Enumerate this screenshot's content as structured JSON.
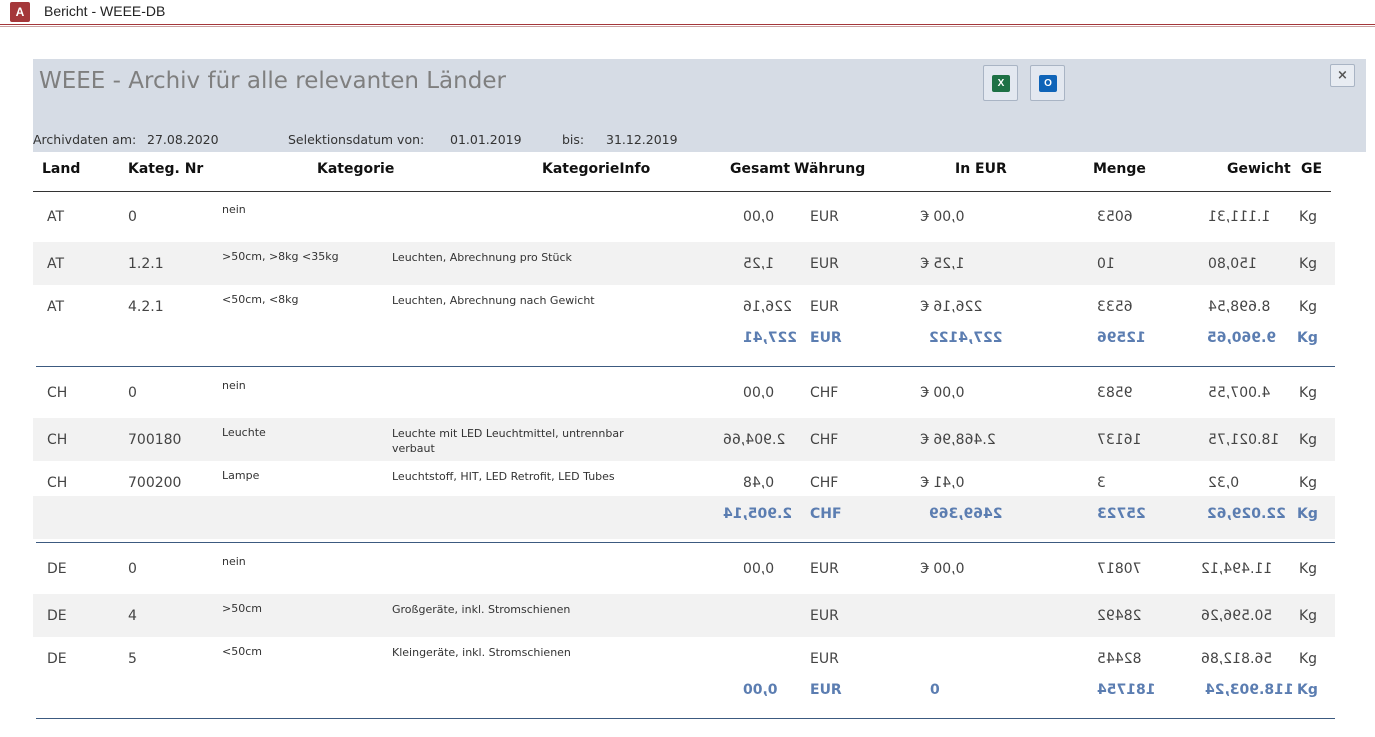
{
  "window": {
    "title": "Bericht - WEEE-DB",
    "app_icon": "A"
  },
  "header": {
    "title": "WEEE - Archiv für alle relevanten Länder",
    "export_excel_icon": "X",
    "export_outlook_icon": "O",
    "close_label": "×",
    "archive_label": "Archivdaten am:",
    "archive_date": "27.08.2020",
    "selection_label": "Selektionsdatum von:",
    "selection_from": "01.01.2019",
    "to_label": "bis:",
    "selection_to": "31.12.2019"
  },
  "columns": {
    "land": "Land",
    "nr": "Kateg. Nr",
    "kategorie": "Kategorie",
    "info": "KategorieInfo",
    "gesamt": "Gesamt",
    "waehrung": "Währung",
    "in_eur": "In EUR",
    "menge": "Menge",
    "gewicht": "Gewicht",
    "ge": "GE"
  },
  "rows": [
    {
      "land": "AT",
      "nr": "0",
      "kategorie": "nein",
      "info": "",
      "gesamt": "0,00",
      "waehrung": "EUR",
      "in_eur": "0,00 €",
      "menge": "6053",
      "gewicht": "1.111,31",
      "ge": "Kg"
    },
    {
      "land": "AT",
      "nr": "1.2.1",
      "kategorie": ">50cm, >8kg <35kg",
      "info": "Leuchten, Abrechnung pro Stück",
      "gesamt": "1,25",
      "waehrung": "EUR",
      "in_eur": "1,25 €",
      "menge": "10",
      "gewicht": "150,80",
      "ge": "Kg"
    },
    {
      "land": "AT",
      "nr": "4.2.1",
      "kategorie": "<50cm, <8kg",
      "info": "Leuchten, Abrechnung nach Gewicht",
      "gesamt": "226,16",
      "waehrung": "EUR",
      "in_eur": "226,16 €",
      "menge": "6533",
      "gewicht": "8.698,54",
      "ge": "Kg"
    },
    {
      "land": "CH",
      "nr": "0",
      "kategorie": "nein",
      "info": "",
      "gesamt": "0,00",
      "waehrung": "CHF",
      "in_eur": "0,00 €",
      "menge": "9583",
      "gewicht": "4.007,55",
      "ge": "Kg"
    },
    {
      "land": "CH",
      "nr": "700180",
      "kategorie": "Leuchte",
      "info": "Leuchte mit LED Leuchtmittel, untrennbar verbaut",
      "gesamt": "2.904,66",
      "waehrung": "CHF",
      "in_eur": "2.468,96 €",
      "menge": "16137",
      "gewicht": "18.021,75",
      "ge": "Kg"
    },
    {
      "land": "CH",
      "nr": "700200",
      "kategorie": "Lampe",
      "info": "Leuchtstoff, HIT, LED Retrofit, LED Tubes",
      "gesamt": "0,48",
      "waehrung": "CHF",
      "in_eur": "0,41 €",
      "menge": "3",
      "gewicht": "0,32",
      "ge": "Kg"
    },
    {
      "land": "DE",
      "nr": "0",
      "kategorie": "nein",
      "info": "",
      "gesamt": "0,00",
      "waehrung": "EUR",
      "in_eur": "0,00 €",
      "menge": "70817",
      "gewicht": "11.494,12",
      "ge": "Kg"
    },
    {
      "land": "DE",
      "nr": "4",
      "kategorie": ">50cm",
      "info": "Großgeräte, inkl. Stromschienen",
      "gesamt": "",
      "waehrung": "EUR",
      "in_eur": "",
      "menge": "28492",
      "gewicht": "50.596,26",
      "ge": "Kg"
    },
    {
      "land": "DE",
      "nr": "5",
      "kategorie": "<50cm",
      "info": "Kleingeräte, inkl. Stromschienen",
      "gesamt": "",
      "waehrung": "EUR",
      "in_eur": "",
      "menge": "82445",
      "gewicht": "56.812,86",
      "ge": "Kg"
    }
  ],
  "sums": [
    {
      "gesamt": "227,41",
      "waehrung": "EUR",
      "in_eur": "227,4122",
      "menge": "12596",
      "gewicht": "9.960,65",
      "ge": "Kg"
    },
    {
      "gesamt": "2.905,14",
      "waehrung": "CHF",
      "in_eur": "2469,369",
      "menge": "25723",
      "gewicht": "22.029,62",
      "ge": "Kg"
    },
    {
      "gesamt": "0,00",
      "waehrung": "EUR",
      "in_eur": "0",
      "menge": "181754",
      "gewicht": "118.903,24",
      "ge": "Kg"
    }
  ]
}
